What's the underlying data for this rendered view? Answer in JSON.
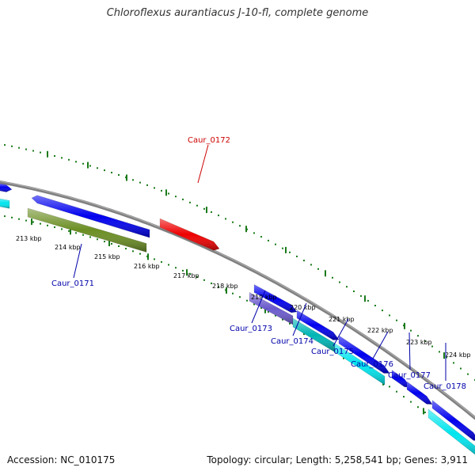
{
  "title": "Chloroflexus aurantiacus J-10-fl, complete genome",
  "footer": {
    "accession": "Accession: NC_010175",
    "summary": "Topology: circular; Length: 5,258,541 bp; Genes: 3,911"
  },
  "colors": {
    "backbone": "#808080",
    "tick": "#1a7a1a",
    "blue": "#0000ee",
    "cyan": "#00e5ee",
    "olive": "#6b8e23",
    "slate": "#6a5acd",
    "teal": "#00b5b5",
    "red": "#ee0000",
    "label_blue": "#0000aa",
    "label_red": "#cc0000"
  },
  "kbp_labels": [
    "213 kbp",
    "214 kbp",
    "215 kbp",
    "216 kbp",
    "217 kbp",
    "218 kbp",
    "219 kbp",
    "220 kbp",
    "221 kbp",
    "222 kbp",
    "223 kbp",
    "224 kbp"
  ],
  "gene_labels": [
    {
      "text": "Caur_0172",
      "color": "red"
    },
    {
      "text": "Caur_0171",
      "color": "blue"
    },
    {
      "text": "Caur_0173",
      "color": "blue"
    },
    {
      "text": "Caur_0174",
      "color": "blue"
    },
    {
      "text": "Caur_0175",
      "color": "blue"
    },
    {
      "text": "Caur_0176",
      "color": "blue"
    },
    {
      "text": "Caur_0177",
      "color": "blue"
    },
    {
      "text": "Caur_0178",
      "color": "blue"
    }
  ]
}
